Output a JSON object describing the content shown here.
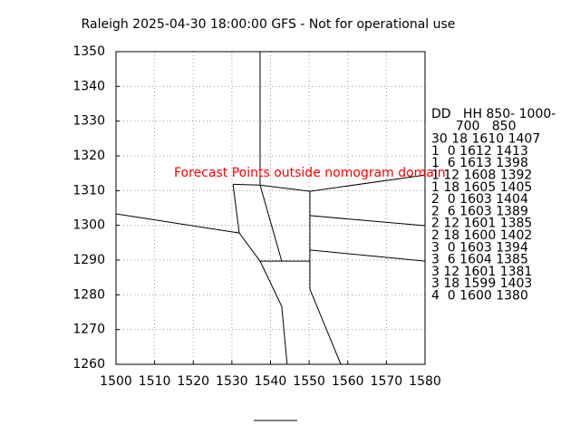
{
  "chart_data": {
    "type": "line",
    "title": "Raleigh 2025-04-30 18:00:00 GFS - Not for operational use",
    "annotation": "Forecast Points outside nomogram domain",
    "annotation_color": "#ff0000",
    "color": "#000000",
    "xlim": [
      1500,
      1580
    ],
    "xticks": [
      1500,
      1510,
      1520,
      1530,
      1540,
      1550,
      1560,
      1570,
      1580
    ],
    "ylim": [
      1260,
      1350
    ],
    "yticks": [
      1260,
      1270,
      1280,
      1290,
      1300,
      1310,
      1320,
      1330,
      1340,
      1350
    ],
    "grid": true,
    "segments": [
      {
        "x": [
          1537.3,
          1537.3
        ],
        "y": [
          1350,
          1311.6
        ]
      },
      {
        "x": [
          1530.3,
          1537.3
        ],
        "y": [
          1311.8,
          1311.6
        ]
      },
      {
        "x": [
          1537.3,
          1550.2,
          1580
        ],
        "y": [
          1311.6,
          1309.8,
          1314.5
        ]
      },
      {
        "x": [
          1530.3,
          1531.9
        ],
        "y": [
          1311.8,
          1297.8
        ]
      },
      {
        "x": [
          1500,
          1531.9,
          1537.3
        ],
        "y": [
          1303.3,
          1297.8,
          1289.7
        ]
      },
      {
        "x": [
          1537.3,
          1542.9
        ],
        "y": [
          1311.6,
          1289.7
        ]
      },
      {
        "x": [
          1537.3,
          1550.2
        ],
        "y": [
          1289.7,
          1289.7
        ]
      },
      {
        "x": [
          1550.2,
          1550.2,
          1550.2,
          1558.2
        ],
        "y": [
          1309.8,
          1289.7,
          1281.6,
          1260
        ]
      },
      {
        "x": [
          1550.2,
          1580
        ],
        "y": [
          1302.8,
          1299.9
        ]
      },
      {
        "x": [
          1550.2,
          1580
        ],
        "y": [
          1292.9,
          1289.7
        ]
      },
      {
        "x": [
          1537.3,
          1542.9,
          1544.3
        ],
        "y": [
          1289.7,
          1276.7,
          1260
        ]
      }
    ],
    "table_lines": [
      "DD   HH 850- 1000-",
      "      700   850",
      "30 18 1610 1407",
      "1  0 1612 1413",
      "1  6 1613 1398",
      "1 12 1608 1392",
      "1 18 1605 1405",
      "2  0 1603 1404",
      "2  6 1603 1389",
      "2 12 1601 1385",
      "2 18 1600 1402",
      "3  0 1603 1394",
      "3  6 1604 1385",
      "3 12 1601 1381",
      "3 18 1599 1403",
      "4  0 1600 1380"
    ]
  }
}
